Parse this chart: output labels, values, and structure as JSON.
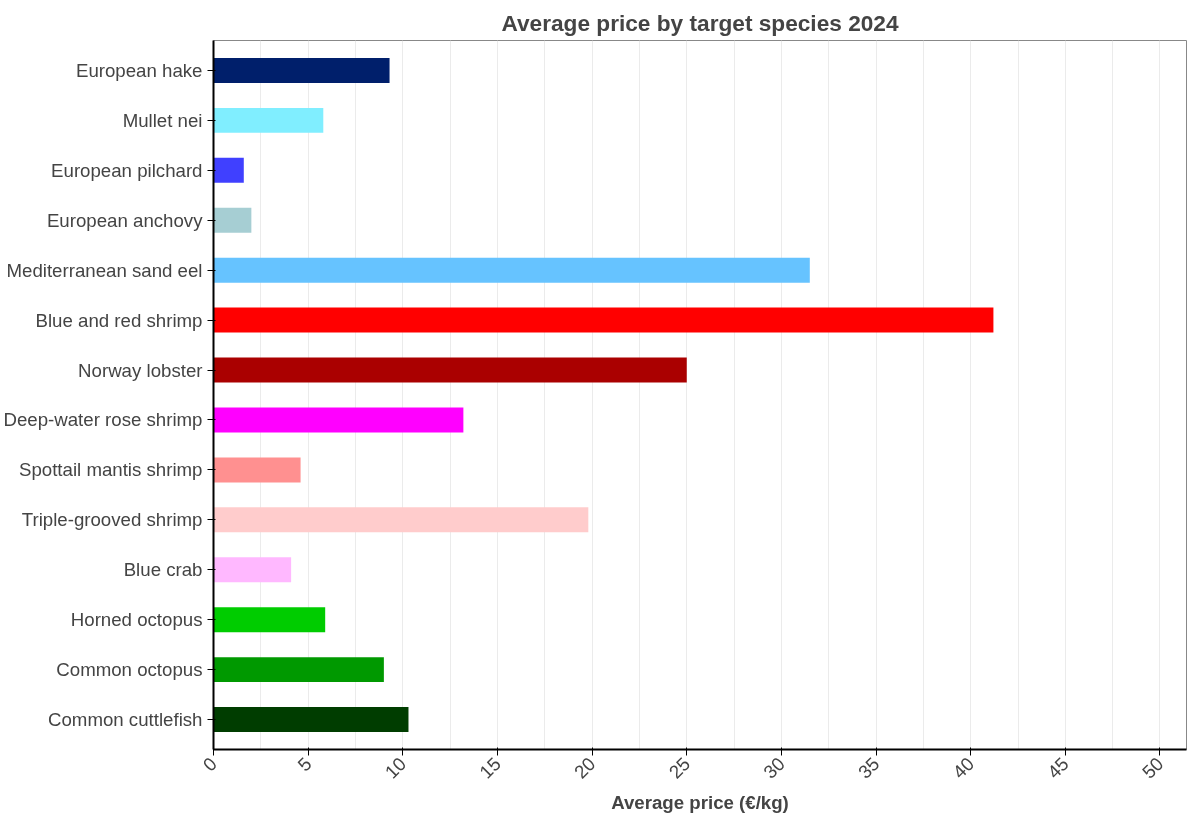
{
  "chart_data": {
    "type": "bar",
    "orientation": "horizontal",
    "title": "Average price by target species 2024",
    "xlabel": "Average price (€/kg)",
    "categories": [
      "European hake",
      "Mullet nei",
      "European pilchard",
      "European anchovy",
      "Mediterranean sand eel",
      "Blue and red shrimp",
      "Norway lobster",
      "Deep-water rose shrimp",
      "Spottail mantis shrimp",
      "Triple-grooved shrimp",
      "Blue crab",
      "Horned octopus",
      "Common octopus",
      "Common cuttlefish"
    ],
    "values": [
      9.3,
      5.8,
      1.6,
      2.0,
      31.5,
      41.2,
      25.0,
      13.2,
      4.6,
      19.8,
      4.1,
      5.9,
      9.0,
      10.3
    ],
    "colors": [
      "#001f6b",
      "#80eeff",
      "#4040ff",
      "#a6ced3",
      "#66c3ff",
      "#ff0000",
      "#aa0000",
      "#ff00ff",
      "#ff9090",
      "#ffcccc",
      "#ffb8ff",
      "#00cc00",
      "#009900",
      "#003d00"
    ],
    "xlim": [
      0,
      51.4
    ],
    "xticks": [
      0,
      5,
      10,
      15,
      20,
      25,
      30,
      35,
      40,
      45,
      50
    ],
    "grid": "x"
  }
}
